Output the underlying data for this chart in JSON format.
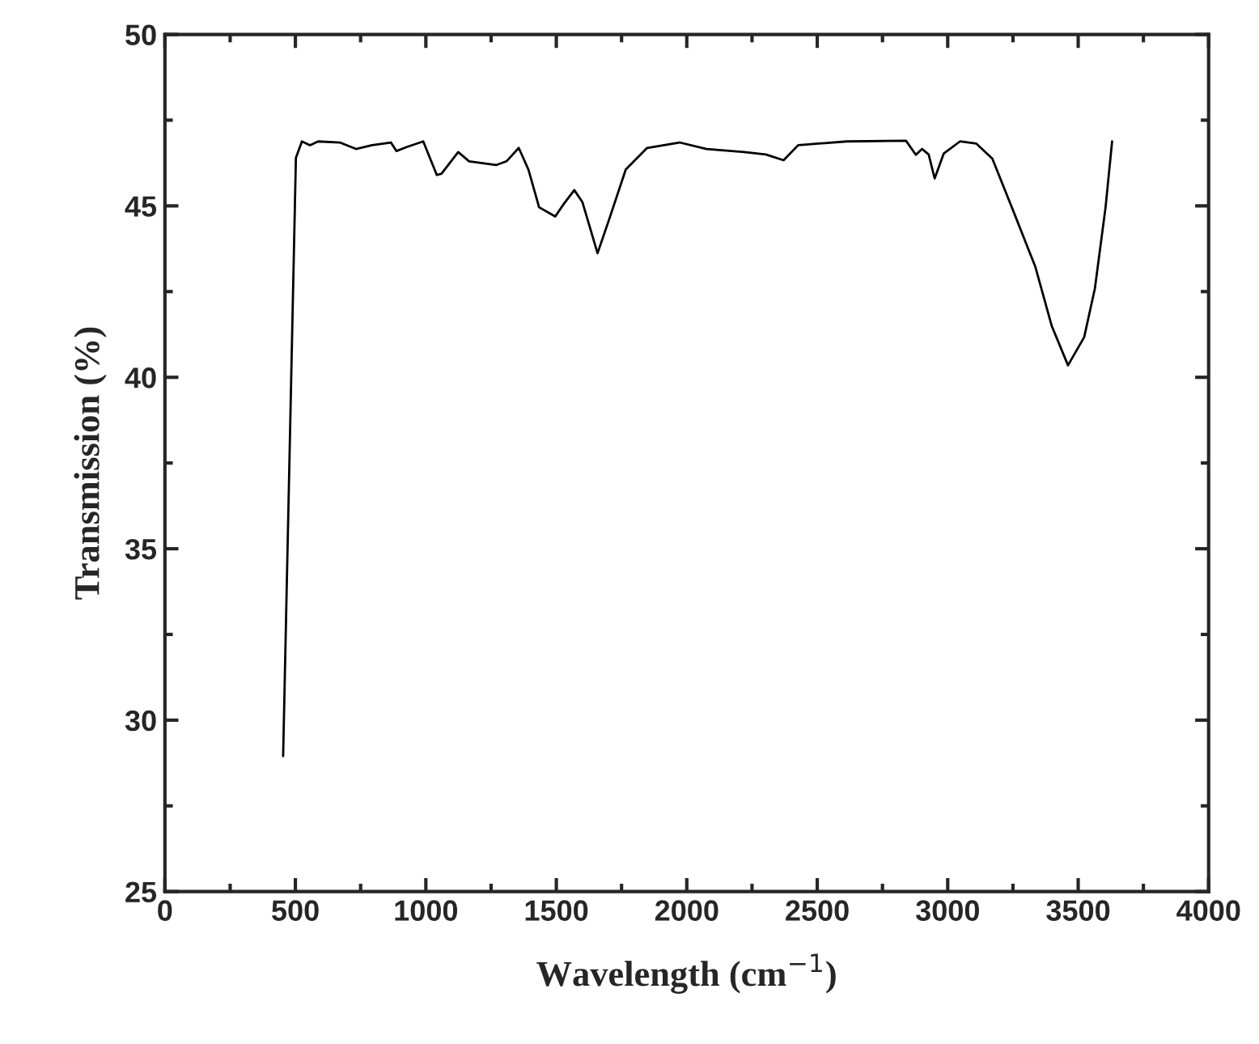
{
  "chart_data": {
    "type": "line",
    "xlabel": "Wavelength (cm$^{−1}$)",
    "ylabel": "Transmission (%)",
    "xlim": [
      0,
      4000
    ],
    "ylim": [
      25,
      50
    ],
    "xticks": [
      0,
      500,
      1000,
      1500,
      2000,
      2500,
      3000,
      3500,
      4000
    ],
    "yticks": [
      25,
      30,
      35,
      40,
      45,
      50
    ],
    "grid": false,
    "marker": "none",
    "line_style": "solid",
    "series": [
      {
        "color": "#000000",
        "x": [
          453,
          502,
          525,
          556,
          587,
          670,
          732,
          794,
          866,
          887,
          928,
          990,
          1042,
          1060,
          1124,
          1166,
          1269,
          1309,
          1356,
          1393,
          1434,
          1496,
          1527,
          1569,
          1600,
          1658,
          1704,
          1766,
          1848,
          1972,
          2076,
          2220,
          2303,
          2371,
          2427,
          2613,
          2840,
          2878,
          2902,
          2927,
          2950,
          2985,
          3047,
          3109,
          3171,
          3254,
          3336,
          3399,
          3461,
          3523,
          3564,
          3605,
          3630
        ],
        "values": [
          28.95,
          46.4,
          46.88,
          46.77,
          46.88,
          46.85,
          46.66,
          46.77,
          46.85,
          46.6,
          46.72,
          46.88,
          45.9,
          45.94,
          46.57,
          46.3,
          46.19,
          46.3,
          46.69,
          46.06,
          44.96,
          44.69,
          45.04,
          45.46,
          45.11,
          43.62,
          44.64,
          46.06,
          46.69,
          46.85,
          46.66,
          46.57,
          46.5,
          46.33,
          46.77,
          46.88,
          46.9,
          46.49,
          46.66,
          46.5,
          45.8,
          46.53,
          46.88,
          46.82,
          46.38,
          44.8,
          43.22,
          41.49,
          40.35,
          41.17,
          42.59,
          44.96,
          46.88
        ]
      }
    ]
  }
}
